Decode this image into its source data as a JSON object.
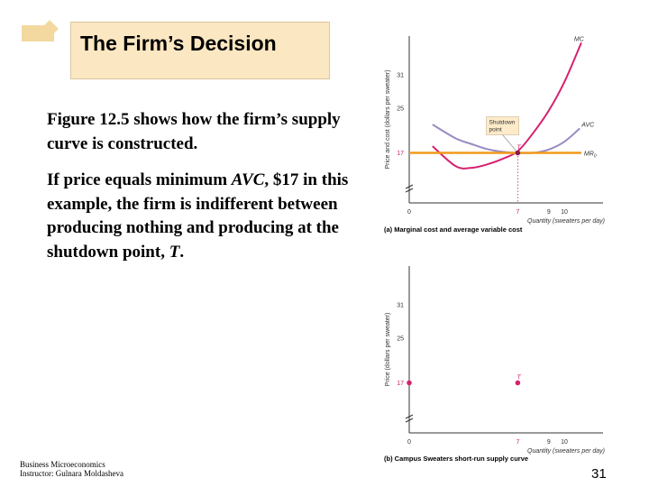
{
  "title": "The Firm’s Decision",
  "body": {
    "p1": "Figure 12.5 shows how the firm’s supply curve is constructed.",
    "p2_pre": "If price equals minimum ",
    "p2_em": "AVC",
    "p2_mid": ", $17 in this example, the firm is indifferent between producing nothing and producing at the shutdown point, ",
    "p2_em2": "T",
    "p2_end": "."
  },
  "footer": {
    "line1": "Business Microeconomics",
    "line2": "Instructor: Gulnara Moldasheva"
  },
  "page_number": "31",
  "colors": {
    "mc": "#d6216f",
    "avc": "#9a8ac4",
    "mr": "#f29a1c",
    "axis": "#333333",
    "label_red": "#d6216f"
  },
  "chart_data": [
    {
      "type": "line",
      "caption": "(a) Marginal cost and average variable cost",
      "ylabel": "Price and cost (dollars per sweater)",
      "xlabel": "Quantity (sweaters per day)",
      "yticks": [
        "31",
        "25",
        "17"
      ],
      "xticks": [
        "0",
        "7",
        "9",
        "10"
      ],
      "xlim": [
        0,
        12.5
      ],
      "ylim": [
        8,
        38
      ],
      "break_on_y": true,
      "annotation": "Shutdown point",
      "series": [
        {
          "name": "MC",
          "x": [
            1.5,
            3,
            4,
            5,
            6,
            7,
            8,
            9,
            10,
            11.1
          ],
          "y": [
            18.2,
            14.6,
            14.3,
            14.9,
            15.9,
            17.3,
            20.6,
            24.6,
            29.7,
            36.8
          ]
        },
        {
          "name": "AVC",
          "x": [
            1.5,
            3,
            4,
            5,
            6,
            7,
            8,
            9,
            10,
            11
          ],
          "y": [
            22.1,
            19.6,
            18.6,
            17.7,
            17.2,
            17.0,
            17.0,
            17.6,
            19.0,
            21.4
          ]
        },
        {
          "name": "MR0",
          "x": [
            0,
            11.1
          ],
          "y": [
            17,
            17
          ]
        }
      ],
      "points": [
        {
          "label": "T",
          "x": 7,
          "y": 17
        }
      ]
    },
    {
      "type": "scatter",
      "caption": "(b) Campus Sweaters short-run supply curve",
      "ylabel": "Price (dollars per sweater)",
      "xlabel": "Quantity (sweaters per day)",
      "yticks": [
        "31",
        "25",
        "17"
      ],
      "xticks": [
        "0",
        "7",
        "9",
        "10"
      ],
      "xlim": [
        0,
        12.5
      ],
      "ylim": [
        8,
        38
      ],
      "break_on_y": true,
      "points": [
        {
          "label": "",
          "x": 0,
          "y": 17
        },
        {
          "label": "T",
          "x": 7,
          "y": 17
        }
      ]
    }
  ]
}
